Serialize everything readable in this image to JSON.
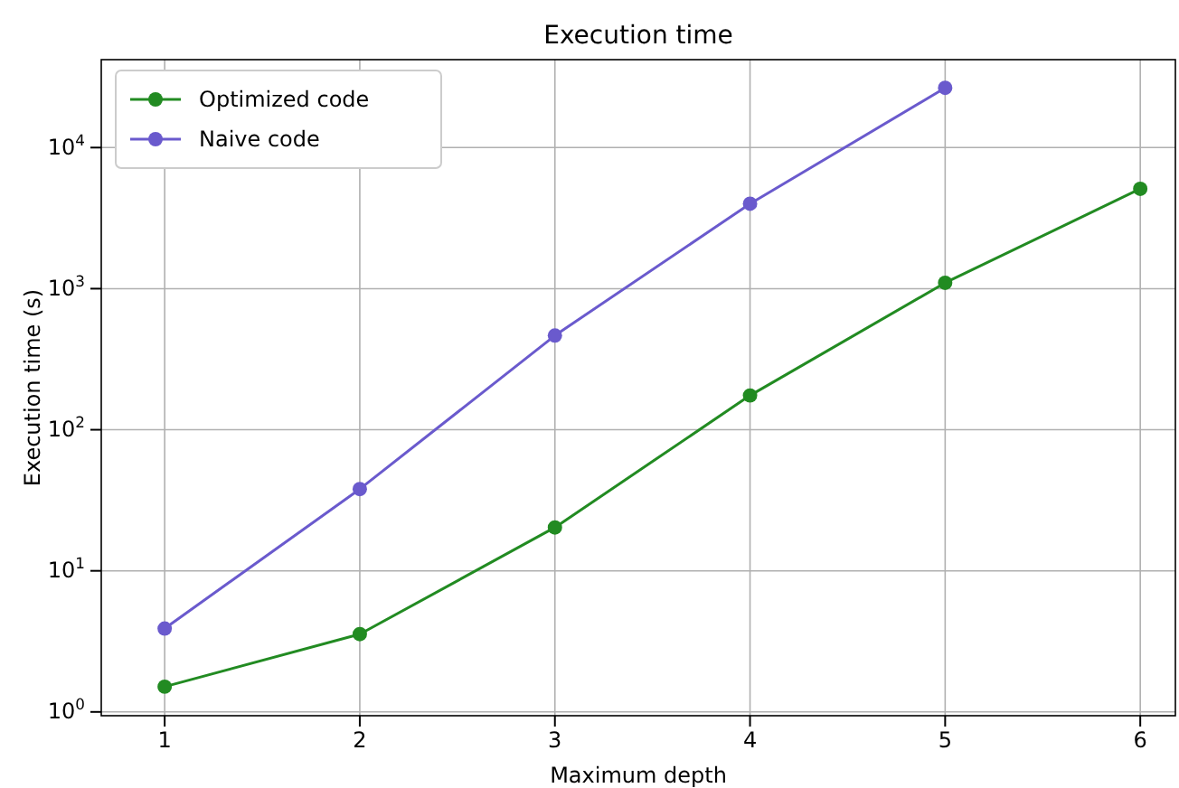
{
  "chart_data": {
    "type": "line",
    "title": "Execution time",
    "xlabel": "Maximum depth",
    "ylabel": "Execution time (s)",
    "x": [
      1,
      2,
      3,
      4,
      5,
      6
    ],
    "series": [
      {
        "name": "Optimized code",
        "color": "#228b22",
        "values": [
          1.51,
          3.56,
          20.3,
          175,
          1100,
          5100
        ]
      },
      {
        "name": "Naive code",
        "color": "#6a5acd",
        "values": [
          3.9,
          38,
          465,
          4000,
          26500,
          null
        ]
      }
    ],
    "log": "y",
    "xlim": [
      0.675,
      6.18
    ],
    "ylim": [
      0.94,
      42000
    ],
    "xticks": [
      1,
      2,
      3,
      4,
      5,
      6
    ],
    "yticks": [
      {
        "value": 1,
        "label": "10$^{0}$"
      },
      {
        "value": 10,
        "label": "10$^{1}$"
      },
      {
        "value": 100,
        "label": "10$^{2}$"
      },
      {
        "value": 1000,
        "label": "10$^{3}$"
      },
      {
        "value": 10000,
        "label": "10$^{4}$"
      }
    ],
    "grid": true,
    "legend": "top left",
    "marker": "circle",
    "line_style": "solid"
  }
}
